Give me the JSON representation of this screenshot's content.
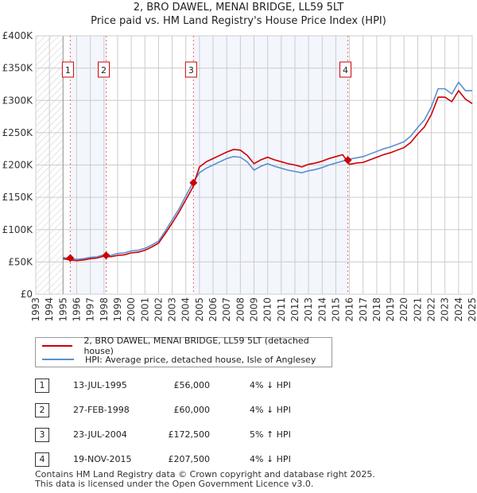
{
  "chart_data": {
    "type": "line",
    "title": "2, BRO DAWEL, MENAI BRIDGE, LL59 5LT",
    "subtitle": "Price paid vs. HM Land Registry's House Price Index (HPI)",
    "xlim": [
      1993,
      2025
    ],
    "ylim": [
      0,
      400000
    ],
    "x_ticks": [
      "1993",
      "1994",
      "1995",
      "1996",
      "1997",
      "1998",
      "1999",
      "2000",
      "2001",
      "2002",
      "2003",
      "2004",
      "2005",
      "2006",
      "2007",
      "2008",
      "2009",
      "2010",
      "2011",
      "2012",
      "2013",
      "2014",
      "2015",
      "2016",
      "2017",
      "2018",
      "2019",
      "2020",
      "2021",
      "2022",
      "2023",
      "2024",
      "2025"
    ],
    "y_ticks": [
      {
        "v": 0,
        "label": "£0"
      },
      {
        "v": 50000,
        "label": "£50K"
      },
      {
        "v": 100000,
        "label": "£100K"
      },
      {
        "v": 150000,
        "label": "£150K"
      },
      {
        "v": 200000,
        "label": "£200K"
      },
      {
        "v": 250000,
        "label": "£250K"
      },
      {
        "v": 300000,
        "label": "£300K"
      },
      {
        "v": 350000,
        "label": "£350K"
      },
      {
        "v": 400000,
        "label": "£400K"
      }
    ],
    "x_start": 1995,
    "x_step": 0.5,
    "series": [
      {
        "name": "2, BRO DAWEL, MENAI BRIDGE, LL59 5LT (detached house)",
        "color": "#cc0000",
        "values": [
          55,
          53,
          52,
          53,
          55,
          56,
          59,
          58,
          60,
          61,
          64,
          65,
          68,
          73,
          79,
          94,
          110,
          127,
          146,
          165,
          197,
          205,
          210,
          215,
          220,
          224,
          223,
          215,
          202,
          208,
          212,
          208,
          205,
          202,
          200,
          197,
          201,
          203,
          206,
          210,
          213,
          216,
          201,
          203,
          204,
          208,
          212,
          216,
          219,
          223,
          227,
          235,
          248,
          259,
          278,
          305,
          305,
          298,
          315,
          302,
          295
        ]
      },
      {
        "name": "HPI: Average price, detached house, Isle of Anglesey",
        "color": "#5b8fd0",
        "values": [
          57,
          55,
          54,
          55,
          57,
          58,
          61,
          60,
          63,
          64,
          67,
          68,
          71,
          76,
          82,
          98,
          115,
          132,
          152,
          172,
          188,
          195,
          200,
          205,
          210,
          213,
          212,
          205,
          192,
          198,
          202,
          198,
          195,
          192,
          190,
          188,
          191,
          193,
          196,
          200,
          203,
          206,
          209,
          211,
          213,
          217,
          221,
          225,
          228,
          232,
          236,
          245,
          258,
          270,
          290,
          318,
          318,
          310,
          328,
          315,
          315
        ]
      }
    ],
    "value_unit_thousands": true,
    "sales": [
      {
        "n": "1",
        "x": 1995.53,
        "price": 56000,
        "date": "13-JUL-1995",
        "price_label": "£56,000",
        "hpi": "4% ↓ HPI"
      },
      {
        "n": "2",
        "x": 1998.16,
        "price": 60000,
        "date": "27-FEB-1998",
        "price_label": "£60,000",
        "hpi": "4% ↓ HPI"
      },
      {
        "n": "3",
        "x": 2004.56,
        "price": 172500,
        "date": "23-JUL-2004",
        "price_label": "£172,500",
        "hpi": "5% ↑ HPI"
      },
      {
        "n": "4",
        "x": 2015.88,
        "price": 207500,
        "date": "19-NOV-2015",
        "price_label": "£207,500",
        "hpi": "4% ↓ HPI"
      }
    ],
    "shaded_ranges": [
      [
        1995.53,
        1998.16
      ],
      [
        2004.56,
        2015.88
      ]
    ],
    "hatched_before": 1995
  },
  "footer": {
    "line1": "Contains HM Land Registry data © Crown copyright and database right 2025.",
    "line2": "This data is licensed under the Open Government Licence v3.0."
  }
}
